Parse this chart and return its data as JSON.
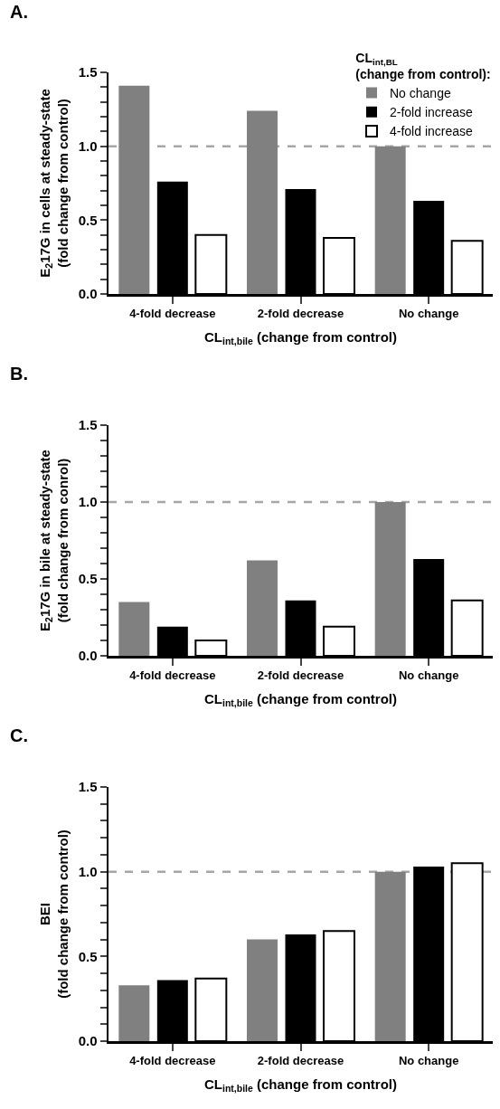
{
  "chart_data": [
    {
      "type": "bar",
      "title": "A.",
      "xlabel": "CL$_{int,bile}$ (change from control)",
      "ylabel": "E$_{2}$17G in cells at steady-state\n(fold change from control)",
      "legend_title": "CL$_{int,BL}$\n(change from control):",
      "legend": "top right",
      "grid": false,
      "categories": [
        "4-fold decrease",
        "2-fold decrease",
        "No change"
      ],
      "series": [
        {
          "name": "No change",
          "color": "#808080",
          "values": [
            1.41,
            1.24,
            1.0
          ]
        },
        {
          "name": "2-fold increase",
          "color": "#000000",
          "values": [
            0.76,
            0.71,
            0.63
          ]
        },
        {
          "name": "4-fold increase",
          "color": "#ffffff",
          "values": [
            0.4,
            0.38,
            0.36
          ]
        }
      ],
      "ylim": [
        0,
        1.5
      ],
      "yticks": [
        {
          "value": 0,
          "label": "0.0"
        },
        {
          "value": 0.1,
          "label": null
        },
        {
          "value": 0.2,
          "label": null
        },
        {
          "value": 0.3,
          "label": null
        },
        {
          "value": 0.4,
          "label": null
        },
        {
          "value": 0.5,
          "label": "0.5"
        },
        {
          "value": 0.6,
          "label": null
        },
        {
          "value": 0.7,
          "label": null
        },
        {
          "value": 0.8,
          "label": null
        },
        {
          "value": 0.9,
          "label": null
        },
        {
          "value": 1,
          "label": "1.0"
        },
        {
          "value": 1.1,
          "label": null
        },
        {
          "value": 1.2,
          "label": null
        },
        {
          "value": 1.3,
          "label": null
        },
        {
          "value": 1.4,
          "label": null
        },
        {
          "value": 1.5,
          "label": "1.5"
        }
      ],
      "ref_lines": [
        {
          "axis": "y",
          "value": 1,
          "color": "#a6a6a6",
          "line_style": "dashed"
        }
      ]
    },
    {
      "type": "bar",
      "title": "B.",
      "xlabel": "CL$_{int,bile}$ (change from control)",
      "ylabel": "E$_{2}$17G in bile at steady-state\n(fold change from conrol)",
      "grid": false,
      "categories": [
        "4-fold decrease",
        "2-fold decrease",
        "No change"
      ],
      "series": [
        {
          "color": "#808080",
          "values": [
            0.35,
            0.62,
            1.0
          ]
        },
        {
          "color": "#000000",
          "values": [
            0.19,
            0.36,
            0.63
          ]
        },
        {
          "color": "#ffffff",
          "values": [
            0.1,
            0.19,
            0.36
          ]
        }
      ],
      "ylim": [
        0,
        1.5
      ],
      "yticks": [
        {
          "value": 0,
          "label": "0.0"
        },
        {
          "value": 0.1,
          "label": null
        },
        {
          "value": 0.2,
          "label": null
        },
        {
          "value": 0.3,
          "label": null
        },
        {
          "value": 0.4,
          "label": null
        },
        {
          "value": 0.5,
          "label": "0.5"
        },
        {
          "value": 0.6,
          "label": null
        },
        {
          "value": 0.7,
          "label": null
        },
        {
          "value": 0.8,
          "label": null
        },
        {
          "value": 0.9,
          "label": null
        },
        {
          "value": 1,
          "label": "1.0"
        },
        {
          "value": 1.1,
          "label": null
        },
        {
          "value": 1.2,
          "label": null
        },
        {
          "value": 1.3,
          "label": null
        },
        {
          "value": 1.4,
          "label": null
        },
        {
          "value": 1.5,
          "label": "1.5"
        }
      ],
      "ref_lines": [
        {
          "axis": "y",
          "value": 1,
          "color": "#a6a6a6",
          "line_style": "dashed"
        }
      ]
    },
    {
      "type": "bar",
      "title": "C.",
      "xlabel": "CL$_{int,bile}$ (change from control)",
      "ylabel": "BEI\n(fold change from control)",
      "grid": false,
      "categories": [
        "4-fold decrease",
        "2-fold decrease",
        "No change"
      ],
      "series": [
        {
          "color": "#808080",
          "values": [
            0.33,
            0.6,
            1.0
          ]
        },
        {
          "color": "#000000",
          "values": [
            0.36,
            0.63,
            1.03
          ]
        },
        {
          "color": "#ffffff",
          "values": [
            0.37,
            0.65,
            1.05
          ]
        }
      ],
      "ylim": [
        0,
        1.5
      ],
      "yticks": [
        {
          "value": 0,
          "label": "0.0"
        },
        {
          "value": 0.1,
          "label": null
        },
        {
          "value": 0.2,
          "label": null
        },
        {
          "value": 0.3,
          "label": null
        },
        {
          "value": 0.4,
          "label": null
        },
        {
          "value": 0.5,
          "label": "0.5"
        },
        {
          "value": 0.6,
          "label": null
        },
        {
          "value": 0.7,
          "label": null
        },
        {
          "value": 0.8,
          "label": null
        },
        {
          "value": 0.9,
          "label": null
        },
        {
          "value": 1,
          "label": "1.0"
        },
        {
          "value": 1.1,
          "label": null
        },
        {
          "value": 1.2,
          "label": null
        },
        {
          "value": 1.3,
          "label": null
        },
        {
          "value": 1.4,
          "label": null
        },
        {
          "value": 1.5,
          "label": "1.5"
        }
      ],
      "ref_lines": [
        {
          "axis": "y",
          "value": 1,
          "color": "#a6a6a6",
          "line_style": "dashed"
        }
      ]
    }
  ]
}
